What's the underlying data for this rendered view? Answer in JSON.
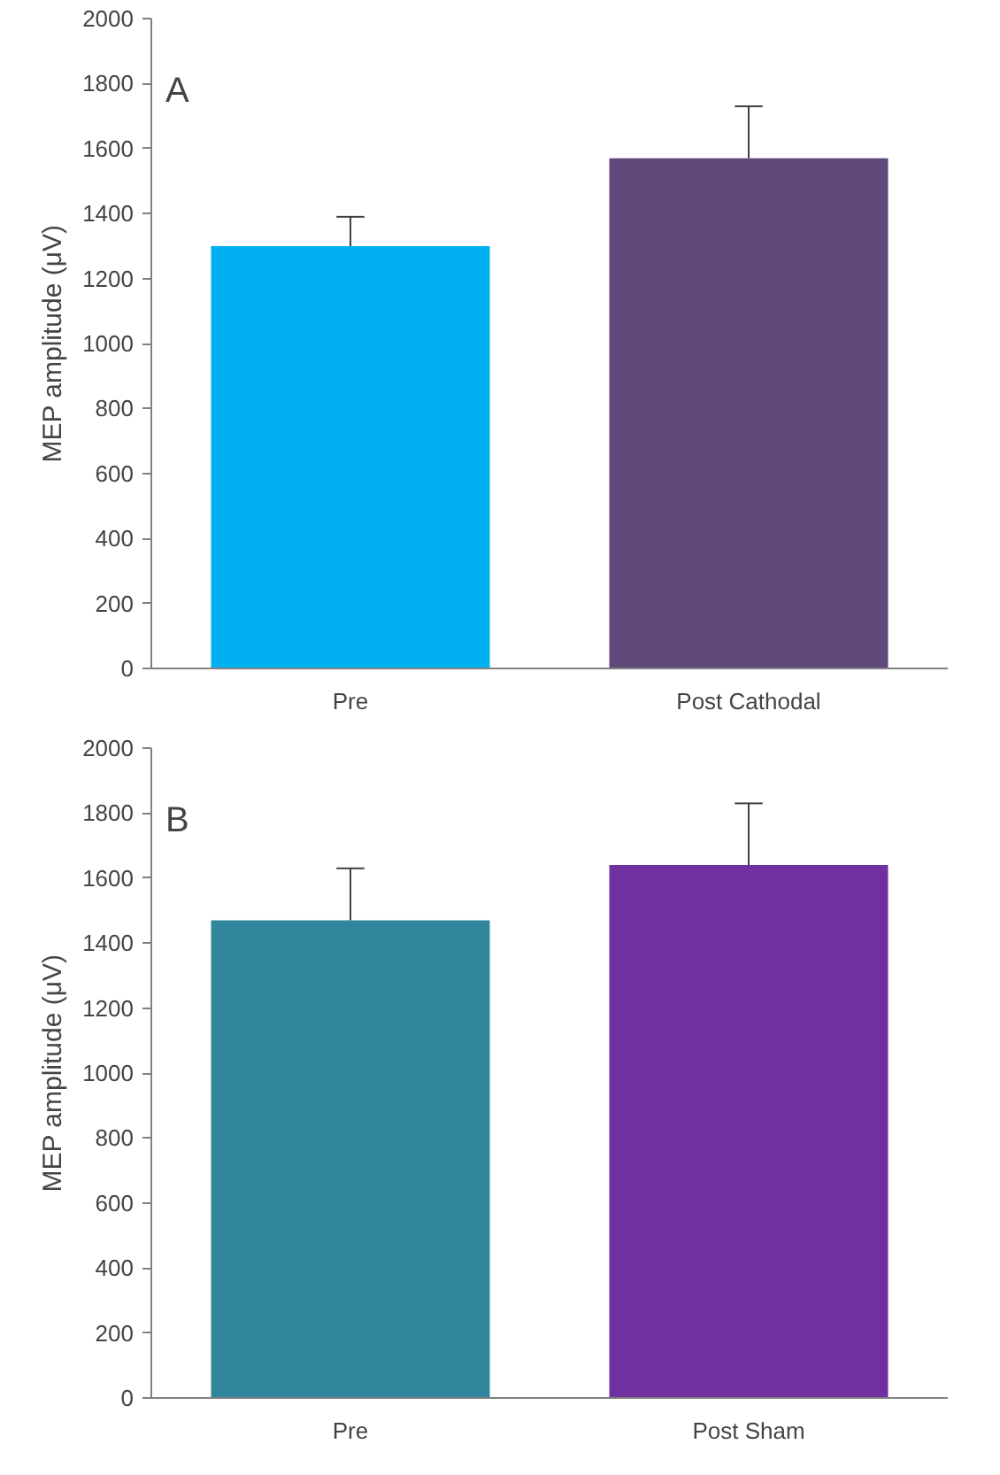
{
  "chart_data": [
    {
      "type": "bar",
      "categories": [
        "Pre",
        "Post Cathodal"
      ],
      "values": [
        1300,
        1570
      ],
      "colors": [
        "#00b0f0",
        "#604a7b"
      ],
      "errors": [
        [
          1300,
          1390
        ],
        [
          1570,
          1730
        ]
      ],
      "ylabel": "MEP amplitude (μV)",
      "ylim": [
        0,
        2000
      ],
      "yticks": [
        0,
        200,
        400,
        600,
        800,
        1000,
        1200,
        1400,
        1600,
        1800,
        2000
      ],
      "grid": false,
      "annotations": [
        "A"
      ]
    },
    {
      "type": "bar",
      "categories": [
        "Pre",
        "Post Sham"
      ],
      "values": [
        1470,
        1640
      ],
      "colors": [
        "#31859c",
        "#7030a0"
      ],
      "errors": [
        [
          1470,
          1630
        ],
        [
          1640,
          1830
        ]
      ],
      "ylabel": "MEP amplitude (μV)",
      "ylim": [
        0,
        2000
      ],
      "yticks": [
        0,
        200,
        400,
        600,
        800,
        1000,
        1200,
        1400,
        1600,
        1800,
        2000
      ],
      "grid": false,
      "annotations": [
        "B"
      ]
    }
  ]
}
